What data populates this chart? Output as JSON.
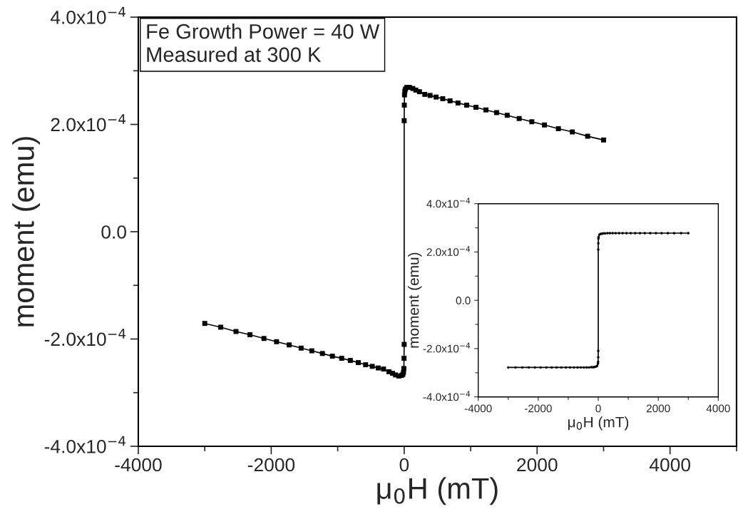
{
  "chart_data": [
    {
      "type": "line",
      "xlabel": "μ$_{0}$H (mT)",
      "ylabel": "moment (emu)",
      "annotations": [
        "Fe Growth Power = 40 W",
        "Measured at 300 K"
      ],
      "marker": "square",
      "line_style": "solid",
      "grid": false,
      "legend": false,
      "x": [
        -3000,
        -2760,
        -2530,
        -2320,
        -2110,
        -1920,
        -1730,
        -1550,
        -1390,
        -1230,
        -1080,
        -940,
        -810,
        -690,
        -580,
        -480,
        -390,
        -310,
        -230,
        -175,
        -130,
        -80,
        -40,
        -20,
        -10,
        -5,
        -2,
        0,
        0,
        2,
        5,
        10,
        20,
        40,
        80,
        130,
        175,
        230,
        310,
        390,
        480,
        580,
        690,
        810,
        940,
        1080,
        1230,
        1390,
        1550,
        1730,
        1920,
        2110,
        2320,
        2530,
        2760,
        3000
      ],
      "series": [
        {
          "color": "#000000",
          "values": [
            -0.000171,
            -0.000178,
            -0.000186,
            -0.000192,
            -0.000199,
            -0.000205,
            -0.000211,
            -0.000217,
            -0.000222,
            -0.000227,
            -0.000232,
            -0.000236,
            -0.00024,
            -0.000244,
            -0.000248,
            -0.000251,
            -0.000254,
            -0.000256,
            -0.000261,
            -0.000264,
            -0.000267,
            -0.000269,
            -0.000268,
            -0.000266,
            -0.000262,
            -0.000255,
            -0.000236,
            -0.00021,
            0.000207,
            0.000236,
            0.000255,
            0.000262,
            0.000266,
            0.000269,
            0.000269,
            0.000267,
            0.000264,
            0.000261,
            0.000256,
            0.000254,
            0.000251,
            0.000248,
            0.000244,
            0.00024,
            0.000236,
            0.000232,
            0.000227,
            0.000222,
            0.000217,
            0.000211,
            0.000205,
            0.000199,
            0.000192,
            0.000186,
            0.000178,
            0.000171
          ]
        }
      ],
      "xlim": [
        -4000,
        5000
      ],
      "xticks": [
        -4000,
        -2000,
        0,
        2000,
        4000
      ],
      "ylim": [
        -0.0004,
        0.0004
      ],
      "yticks": [
        {
          "value": -0.0004,
          "label": "-4.0x10$^{−4}$"
        },
        {
          "value": -0.0002,
          "label": "-2.0x10$^{−4}$"
        },
        {
          "value": 0,
          "label": "0.0"
        },
        {
          "value": 0.0002,
          "label": "2.0x10$^{−4}$"
        },
        {
          "value": 0.0004,
          "label": "4.0x10$^{−4}$"
        }
      ]
    },
    {
      "type": "line",
      "xlabel": "μ$_{0}$H (mT)",
      "ylabel": "moment (emu)",
      "marker": "circle",
      "line_style": "solid",
      "grid": false,
      "legend": false,
      "x": [
        -3000,
        -2760,
        -2530,
        -2320,
        -2110,
        -1920,
        -1730,
        -1550,
        -1390,
        -1230,
        -1080,
        -940,
        -810,
        -690,
        -580,
        -480,
        -390,
        -310,
        -230,
        -175,
        -130,
        -80,
        -40,
        -10,
        -5,
        -2,
        0,
        0,
        2,
        5,
        10,
        40,
        80,
        130,
        175,
        230,
        310,
        390,
        480,
        580,
        690,
        810,
        940,
        1080,
        1230,
        1390,
        1550,
        1730,
        1920,
        2110,
        2320,
        2530,
        2760,
        3000
      ],
      "series": [
        {
          "color": "#000000",
          "values": [
            -0.000278,
            -0.000278,
            -0.000278,
            -0.000278,
            -0.000278,
            -0.000278,
            -0.000278,
            -0.000278,
            -0.000278,
            -0.000278,
            -0.000278,
            -0.000278,
            -0.000278,
            -0.000278,
            -0.000278,
            -0.000278,
            -0.000278,
            -0.000278,
            -0.000277,
            -0.000277,
            -0.000276,
            -0.000275,
            -0.000272,
            -0.000262,
            -0.000255,
            -0.000236,
            -0.00021,
            0.00021,
            0.000236,
            0.000255,
            0.000262,
            0.000272,
            0.000275,
            0.000276,
            0.000277,
            0.000277,
            0.000278,
            0.000278,
            0.000278,
            0.000278,
            0.000278,
            0.000278,
            0.000278,
            0.000278,
            0.000278,
            0.000278,
            0.000278,
            0.000278,
            0.000278,
            0.000278,
            0.000278,
            0.000278,
            0.000278,
            0.000278
          ]
        }
      ],
      "xlim": [
        -4000,
        4000
      ],
      "xticks": [
        -4000,
        -2000,
        0,
        2000,
        4000
      ],
      "ylim": [
        -0.0004,
        0.0004
      ],
      "yticks": [
        {
          "value": -0.0004,
          "label": "-4.0x10$^{−4}$"
        },
        {
          "value": -0.0002,
          "label": "-2.0x10$^{−4}$"
        },
        {
          "value": 0,
          "label": "0.0"
        },
        {
          "value": 0.0002,
          "label": "2.0x10$^{−4}$"
        },
        {
          "value": 0.0004,
          "label": "4.0x10$^{−4}$"
        }
      ]
    }
  ]
}
